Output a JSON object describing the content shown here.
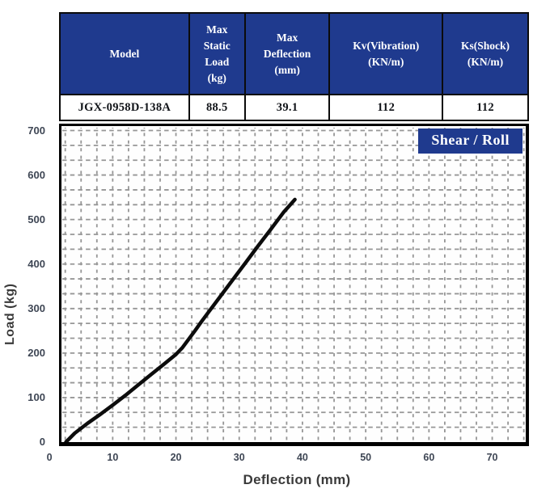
{
  "table": {
    "columns": [
      {
        "lines": [
          "Model"
        ],
        "width_pct": 27.6
      },
      {
        "lines": [
          "Max",
          "Static",
          "Load",
          "(kg)"
        ],
        "width_pct": 11.9
      },
      {
        "lines": [
          "Max",
          "Deflection",
          "(mm)"
        ],
        "width_pct": 18.1
      },
      {
        "lines": [
          "Kv(Vibration)",
          "(KN/m)"
        ],
        "width_pct": 24.1
      },
      {
        "lines": [
          "Ks(Shock)",
          "(KN/m)"
        ],
        "width_pct": 18.3
      }
    ],
    "rows": [
      [
        "JGX-0958D-138A",
        "88.5",
        "39.1",
        "112",
        "112"
      ]
    ]
  },
  "chart_data": {
    "type": "line",
    "legend": "Shear / Roll",
    "legend_position": "top-right",
    "xlabel": "Deflection (mm)",
    "ylabel": "Load (kg)",
    "x_ticks": [
      0,
      10,
      20,
      30,
      40,
      50,
      60,
      70
    ],
    "y_ticks": [
      0,
      100,
      200,
      300,
      400,
      500,
      600,
      700
    ],
    "x_range": [
      1.9,
      75.3
    ],
    "y_range": [
      0,
      710
    ],
    "grid": {
      "style": "dashed",
      "x_step": 2.5,
      "y_step": 33.333
    },
    "series": [
      {
        "name": "Shear / Roll",
        "color": "#0c0c0c",
        "points": [
          [
            2.6,
            0
          ],
          [
            4,
            20
          ],
          [
            6,
            42
          ],
          [
            8,
            62
          ],
          [
            10,
            83
          ],
          [
            12,
            105
          ],
          [
            14,
            128
          ],
          [
            16,
            151
          ],
          [
            18,
            174
          ],
          [
            20,
            197
          ],
          [
            21,
            212
          ],
          [
            22,
            231
          ],
          [
            23,
            250
          ],
          [
            24,
            270
          ],
          [
            25,
            289
          ],
          [
            27,
            327
          ],
          [
            29,
            365
          ],
          [
            31,
            403
          ],
          [
            33,
            441
          ],
          [
            35,
            478
          ],
          [
            37,
            516
          ],
          [
            38.8,
            545
          ]
        ]
      }
    ]
  },
  "colors": {
    "header_bg": "#1f3a8e",
    "badge_bg": "#1f3a8e",
    "grid": "#969696",
    "tick_text": "#3e4654",
    "axis_title_text": "#3a3a3a",
    "table_text": "#101318",
    "border": "#0b0b0b",
    "curve": "#0c0c0c"
  }
}
